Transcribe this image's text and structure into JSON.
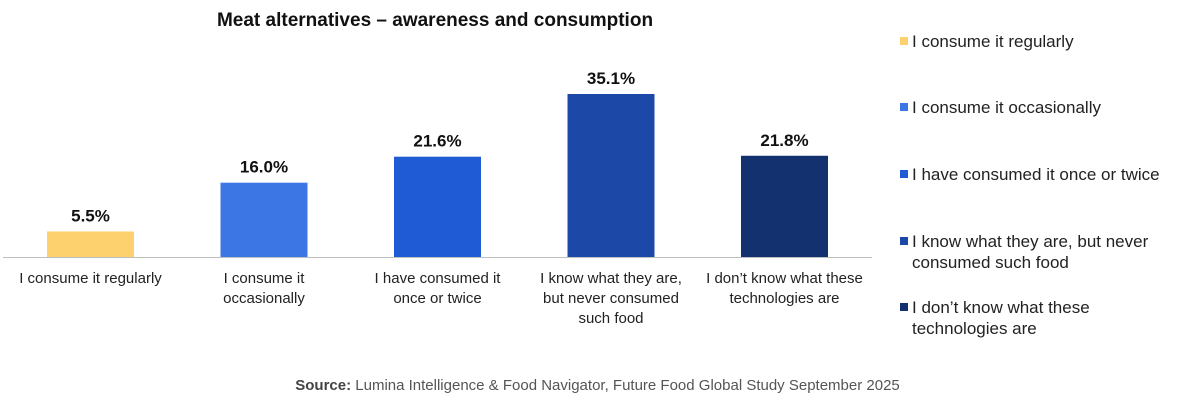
{
  "chart_data": {
    "type": "bar",
    "title": "Meat alternatives – awareness and consumption",
    "categories": [
      "I consume it regularly",
      "I consume it occasionally",
      "I have consumed it once or twice",
      "I know what they are, but never consumed such food",
      "I don’t know what these technologies are"
    ],
    "values": [
      5.5,
      16.0,
      21.6,
      35.1,
      21.8
    ],
    "data_labels": [
      "5.5%",
      "16.0%",
      "21.6%",
      "35.1%",
      "21.8%"
    ],
    "colors": [
      "#FDD26E",
      "#3B76E4",
      "#1F5BD4",
      "#1C48A8",
      "#13306F"
    ],
    "xlabel": "",
    "ylabel": "",
    "ylim": [
      0,
      40
    ],
    "grid": false,
    "legend_placement": "right"
  },
  "axis_labels": [
    "I consume it regularly",
    "I consume it\noccasionally",
    "I have consumed it\nonce or twice",
    "I know what they are,\nbut never consumed\nsuch food",
    "I don’t know what these\ntechnologies are"
  ],
  "legend": [
    "I consume it regularly",
    "I consume it occasionally",
    "I have consumed it once or twice",
    "I know what they are, but never\nconsumed such food",
    "I don’t know what these\ntechnologies are"
  ],
  "source": {
    "label": "Source:",
    "text": " Lumina Intelligence & Food Navigator, Future Food Global Study September 2025"
  }
}
